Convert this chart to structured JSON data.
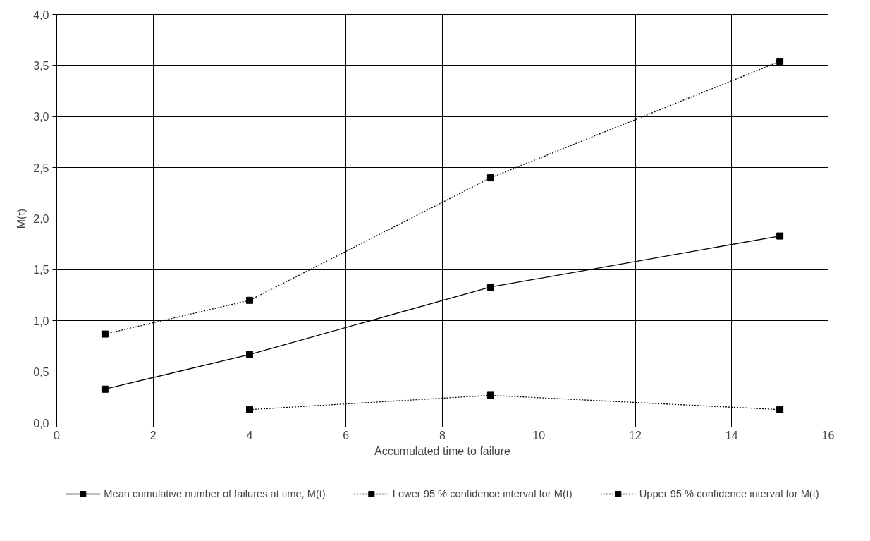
{
  "chart_data": {
    "type": "line",
    "xlabel": "Accumulated time to failure",
    "ylabel": "M(t)",
    "x": [
      1,
      4,
      9,
      15
    ],
    "series": [
      {
        "name": "Mean cumulative number of failures at time, M(t)",
        "color": "#000000",
        "line_style": "solid",
        "values": [
          0.33,
          0.67,
          1.33,
          1.83
        ]
      },
      {
        "name": "Lower 95 % confidence interval for M(t)",
        "color": "#000000",
        "line_style": "dotted",
        "values": [
          null,
          0.13,
          0.27,
          0.13
        ]
      },
      {
        "name": "Upper 95 % confidence interval for M(t)",
        "color": "#000000",
        "line_style": "dotted",
        "values": [
          0.87,
          1.2,
          2.4,
          3.54
        ]
      }
    ],
    "marker": "square",
    "xlim": [
      0,
      16
    ],
    "ylim": [
      0,
      4
    ],
    "xticks": [
      0,
      2,
      4,
      6,
      8,
      10,
      12,
      14,
      16
    ],
    "yticks": [
      {
        "value": 0,
        "label": "0,0"
      },
      {
        "value": 0.5,
        "label": "0,5"
      },
      {
        "value": 1,
        "label": "1,0"
      },
      {
        "value": 1.5,
        "label": "1,5"
      },
      {
        "value": 2,
        "label": "2,0"
      },
      {
        "value": 2.5,
        "label": "2,5"
      },
      {
        "value": 3,
        "label": "3,0"
      },
      {
        "value": 3.5,
        "label": "3,5"
      },
      {
        "value": 4,
        "label": "4,0"
      }
    ],
    "grid": true,
    "legend": "bottom"
  }
}
